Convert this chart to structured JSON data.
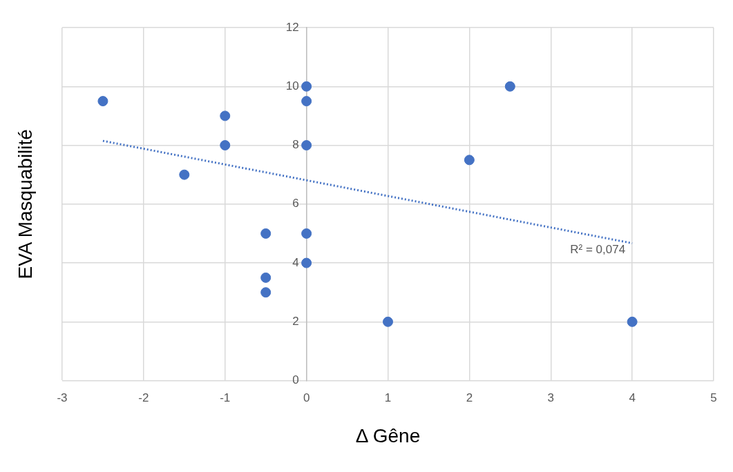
{
  "chart_data": {
    "type": "scatter",
    "xlabel": "Δ Gêne",
    "ylabel": "EVA Masquabilité",
    "xlim": [
      -3,
      5
    ],
    "xticks": [
      -3,
      -2,
      -1,
      0,
      1,
      2,
      3,
      4,
      5
    ],
    "ylim": [
      0,
      12
    ],
    "yticks": [
      0,
      2,
      4,
      6,
      8,
      10,
      12
    ],
    "grid": true,
    "legend": false,
    "marker": "circle",
    "series": [
      {
        "color": "#4472c4",
        "x": [
          -2.5,
          -1,
          -1,
          -1.5,
          0,
          0,
          0,
          0,
          0,
          -0.5,
          -0.5,
          -0.5,
          1,
          2,
          2.5,
          4
        ],
        "values": [
          9.5,
          9,
          8,
          7,
          10,
          9.5,
          8,
          5,
          4,
          5,
          3.5,
          3,
          2,
          7.5,
          10,
          2
        ]
      },
      {
        "type": "line",
        "color": "#4472c4",
        "line_style": "dotted",
        "marker": "none",
        "x": [
          -2.5,
          4
        ],
        "values": [
          8.15,
          4.67
        ]
      }
    ],
    "annotations": [
      "R² = 0,074"
    ]
  }
}
